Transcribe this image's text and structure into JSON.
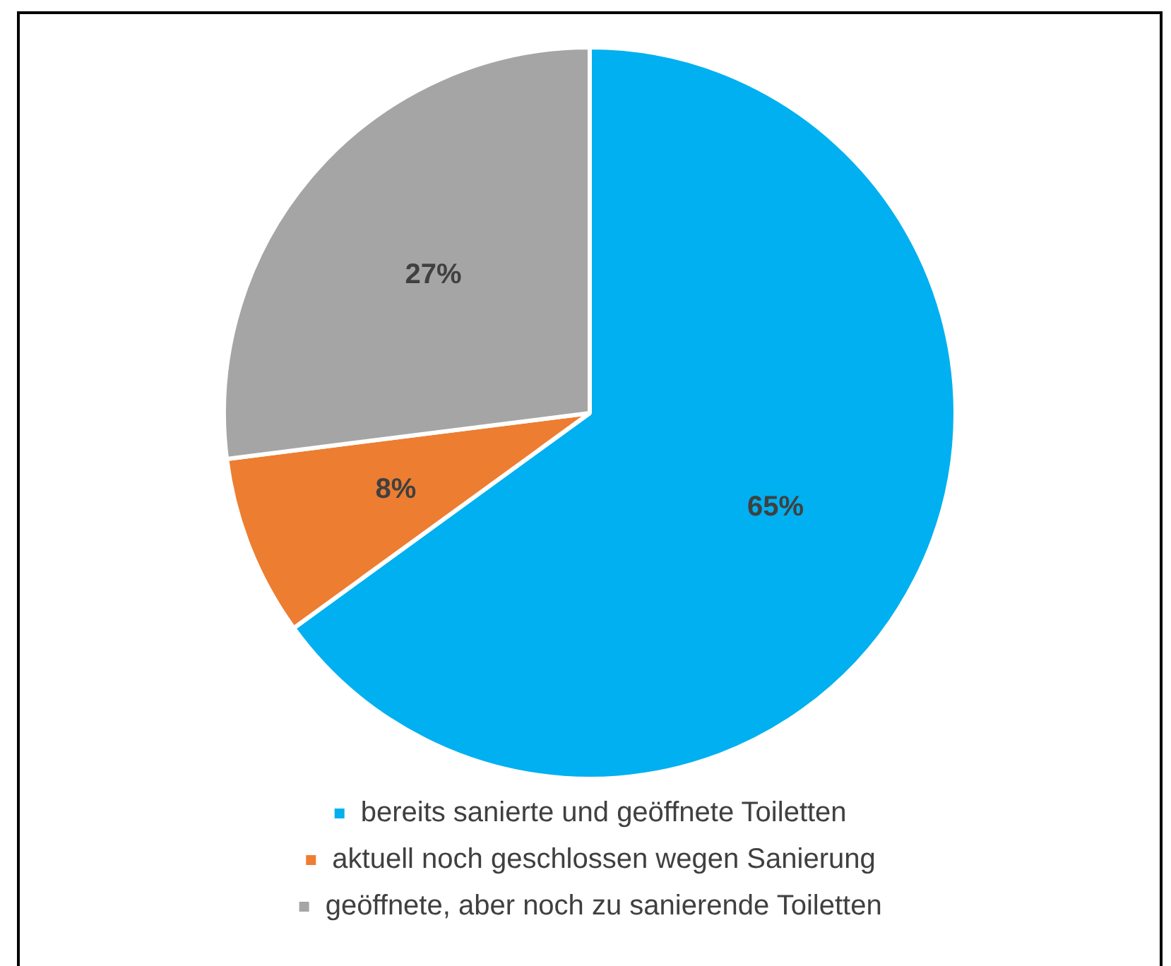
{
  "chart_data": {
    "type": "pie",
    "categories": [
      "bereits sanierte und geöffnete Toiletten",
      "aktuell noch geschlossen wegen Sanierung",
      "geöffnete, aber noch zu sanierende Toiletten"
    ],
    "values": [
      65,
      8,
      27
    ],
    "colors": [
      "#00b0f0",
      "#ed7d31",
      "#a5a5a5"
    ],
    "value_labels": [
      "65%",
      "8%",
      "27%"
    ],
    "legend": "bottom"
  }
}
